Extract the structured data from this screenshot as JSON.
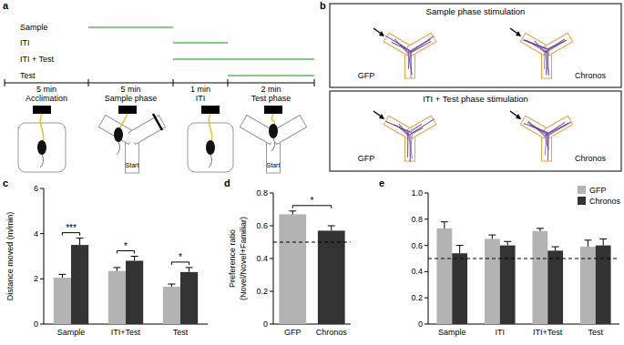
{
  "panel_a": {
    "panel": "a",
    "rows": [
      "Sample",
      "ITI",
      "ITI + Test",
      "Test"
    ],
    "timeline": [
      {
        "duration": "5 min",
        "phase": "Acclimation"
      },
      {
        "duration": "5 min",
        "phase": "Sample phase"
      },
      {
        "duration": "1 min",
        "phase": "ITI"
      },
      {
        "duration": "2 min",
        "phase": "Test phase"
      }
    ],
    "start_label": "Start"
  },
  "panel_b": {
    "panel": "b",
    "groups": [
      {
        "title": "Sample phase stimulation",
        "conditions": [
          "GFP",
          "Chronos"
        ]
      },
      {
        "title": "ITI + Test phase stimulation",
        "conditions": [
          "GFP",
          "Chronos"
        ]
      }
    ]
  },
  "chart_data": [
    {
      "type": "bar",
      "panel": "c",
      "y_label": "Distance moved (m/min)",
      "categories": [
        "Sample",
        "ITI+Test",
        "Test"
      ],
      "series": [
        {
          "name": "GFP",
          "color": "#b3b3b3",
          "values": [
            2.05,
            2.35,
            1.65
          ],
          "errors": [
            0.15,
            0.15,
            0.12
          ]
        },
        {
          "name": "Chronos",
          "color": "#333333",
          "values": [
            3.5,
            2.8,
            2.3
          ],
          "errors": [
            0.3,
            0.2,
            0.2
          ]
        }
      ],
      "annotations": [
        "***",
        "*",
        "*"
      ],
      "ylim": [
        0,
        6
      ],
      "yticks": [
        0,
        2,
        4,
        6
      ]
    },
    {
      "type": "bar",
      "panel": "d",
      "y_label": [
        "Preference ratio",
        "(Novel/Novel+Familiar)"
      ],
      "categories": [
        "GFP",
        "Chronos"
      ],
      "values": [
        0.67,
        0.57
      ],
      "errors": [
        0.02,
        0.03
      ],
      "colors": [
        "#b3b3b3",
        "#333333"
      ],
      "reference_line": 0.5,
      "annotations": [
        "*"
      ],
      "ylim": [
        0,
        0.8
      ],
      "yticks": [
        0,
        0.2,
        0.4,
        0.6,
        0.8
      ]
    },
    {
      "type": "bar",
      "panel": "e",
      "categories": [
        "Sample",
        "ITI",
        "ITI+Test",
        "Test"
      ],
      "series": [
        {
          "name": "GFP",
          "color": "#b3b3b3",
          "values": [
            0.73,
            0.65,
            0.71,
            0.59
          ],
          "errors": [
            0.05,
            0.03,
            0.02,
            0.05
          ]
        },
        {
          "name": "Chronos",
          "color": "#333333",
          "values": [
            0.54,
            0.6,
            0.56,
            0.6
          ],
          "errors": [
            0.06,
            0.03,
            0.03,
            0.05
          ]
        }
      ],
      "reference_line": 0.5,
      "ylim": [
        0,
        1
      ],
      "yticks": [
        0,
        0.2,
        0.4,
        0.6,
        0.8,
        {
          "value": 1,
          "label": "1.0"
        }
      ],
      "legend": "top-right"
    }
  ]
}
